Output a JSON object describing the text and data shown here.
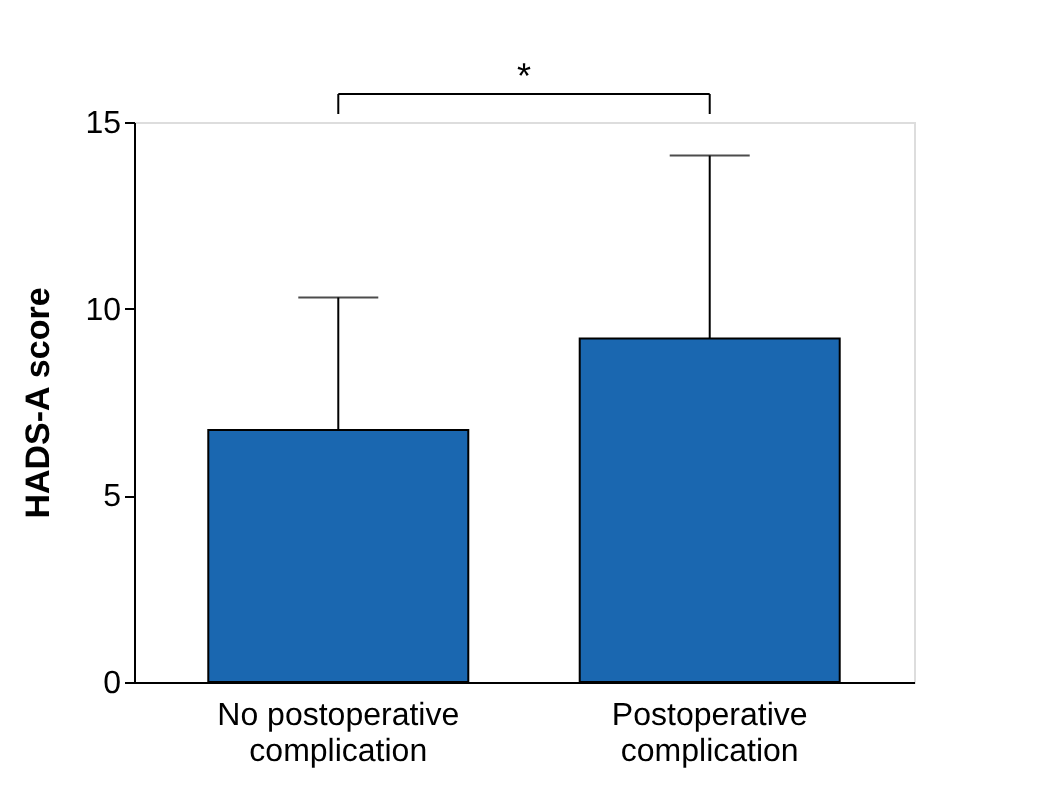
{
  "chart_data": {
    "type": "bar",
    "ylabel": "HADS-A score",
    "categories": [
      "No postoperative complication",
      "Postoperative complication"
    ],
    "values": [
      6.75,
      9.2
    ],
    "errors": [
      [
        6.75,
        10.3
      ],
      [
        9.2,
        14.1
      ]
    ],
    "color": "#1a67b0",
    "ylim": [
      0,
      15
    ],
    "yticks": [
      0,
      5,
      10,
      15
    ],
    "grid": false,
    "annotations": [
      "*"
    ]
  }
}
